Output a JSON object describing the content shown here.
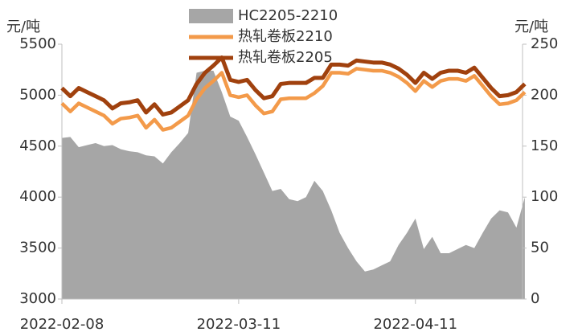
{
  "chart_data": {
    "type": "line",
    "y_unit_left": "元/吨",
    "y_unit_right": "元/吨",
    "categories": [
      "2022-02-08",
      null,
      null,
      null,
      null,
      null,
      null,
      null,
      null,
      null,
      null,
      null,
      null,
      null,
      null,
      null,
      null,
      null,
      null,
      null,
      null,
      "2022-03-11",
      null,
      null,
      null,
      null,
      null,
      null,
      null,
      null,
      null,
      null,
      null,
      null,
      null,
      null,
      null,
      null,
      null,
      null,
      null,
      null,
      "2022-04-11",
      null,
      null,
      null,
      null,
      null,
      null,
      null,
      null,
      null,
      null,
      null,
      null,
      null
    ],
    "series": [
      {
        "name": "HC2205-2210",
        "kind": "area",
        "axis": "y2",
        "color": "#a6a6a6",
        "values": [
          158,
          159,
          149,
          151,
          153,
          150,
          151,
          147,
          145,
          144,
          141,
          140,
          133,
          144,
          153,
          163,
          222,
          224,
          224,
          203,
          179,
          175,
          159,
          142,
          124,
          106,
          108,
          98,
          96,
          100,
          116,
          106,
          87,
          65,
          50,
          37,
          27,
          29,
          33,
          37,
          53,
          65,
          79,
          49,
          61,
          45,
          45,
          49,
          53,
          50,
          65,
          79,
          87,
          85,
          70,
          100
        ]
      },
      {
        "name": "热轧卷板2210",
        "kind": "line",
        "color": "#f39a4a",
        "values": [
          4920,
          4840,
          4920,
          4880,
          4840,
          4800,
          4720,
          4770,
          4780,
          4800,
          4680,
          4760,
          4660,
          4680,
          4740,
          4800,
          4960,
          5070,
          5140,
          5220,
          5000,
          4980,
          5000,
          4900,
          4820,
          4840,
          4960,
          4970,
          4970,
          4970,
          5020,
          5090,
          5220,
          5220,
          5210,
          5260,
          5250,
          5240,
          5240,
          5220,
          5180,
          5120,
          5040,
          5140,
          5080,
          5140,
          5160,
          5160,
          5140,
          5190,
          5090,
          4990,
          4910,
          4920,
          4950,
          5030
        ]
      },
      {
        "name": "热轧卷板2205",
        "kind": "line",
        "color": "#a0410e",
        "values": [
          5070,
          4990,
          5070,
          5030,
          4990,
          4950,
          4870,
          4920,
          4930,
          4950,
          4830,
          4910,
          4810,
          4830,
          4890,
          4950,
          5110,
          5220,
          5290,
          5370,
          5150,
          5130,
          5150,
          5050,
          4970,
          4990,
          5110,
          5120,
          5120,
          5120,
          5170,
          5170,
          5300,
          5300,
          5290,
          5340,
          5330,
          5320,
          5320,
          5300,
          5260,
          5200,
          5120,
          5220,
          5160,
          5220,
          5240,
          5240,
          5220,
          5270,
          5170,
          5070,
          4990,
          5000,
          5030,
          5110
        ]
      }
    ],
    "ylim": [
      3000,
      5500
    ],
    "yticks": [
      3000,
      3500,
      4000,
      4500,
      5000,
      5500
    ],
    "y2lim": [
      0,
      250
    ],
    "y2ticks": [
      0,
      50,
      100,
      150,
      200,
      250
    ]
  }
}
